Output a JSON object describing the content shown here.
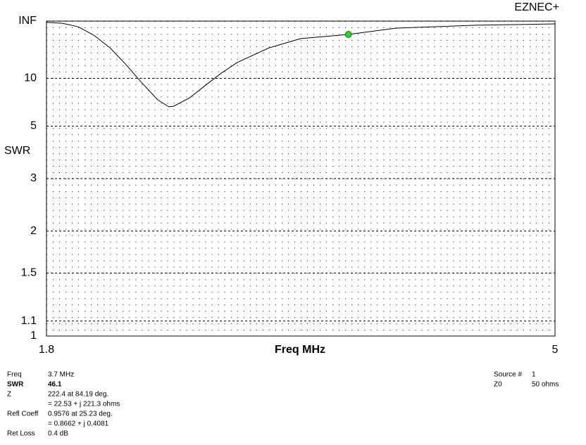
{
  "brand": "EZNEC+",
  "chart_data": {
    "type": "line",
    "y_scale": "reflection",
    "ylabel": "SWR",
    "xlabel": "Freq MHz",
    "x": [
      1.8,
      1.9,
      2.0,
      2.1,
      2.2,
      2.3,
      2.4,
      2.5,
      2.57,
      2.6,
      2.7,
      2.8,
      2.9,
      3.0,
      3.2,
      3.4,
      3.7,
      4.0,
      4.5,
      5.0
    ],
    "series": [
      {
        "color": "#000000",
        "values": [
          500,
          285,
          110,
          43,
          22.5,
          13.5,
          9.2,
          7.0,
          6.35,
          6.4,
          7.2,
          8.8,
          11.1,
          14.2,
          22.5,
          35,
          46.1,
          89,
          150,
          220
        ]
      }
    ],
    "xlim": [
      1.8,
      5
    ],
    "xticks": [
      1.8,
      5
    ],
    "ylim": [
      1,
      null
    ],
    "yticks": [
      1,
      1.1,
      1.5,
      2,
      3,
      5,
      10,
      {
        "value": null,
        "label": "INF"
      }
    ],
    "grid": true,
    "marker": {
      "x": 3.7,
      "y": 46.1,
      "color": "#33cc33"
    }
  },
  "readout": {
    "left": [
      {
        "label": "Freq",
        "value": "3.7 MHz"
      },
      {
        "label": "SWR",
        "value": "46.1",
        "bold": true
      },
      {
        "label": "Z",
        "value": "222.4 at 84.19 deg."
      },
      {
        "label": null,
        "value": "= 22.53 + j 221.3 ohms"
      },
      {
        "label": "Refl Coeff",
        "value": "0.9576 at 25.23 deg."
      },
      {
        "label": null,
        "value": "= 0.8662 + j 0.4081"
      },
      {
        "label": "Ret Loss",
        "value": "0.4 dB"
      }
    ],
    "right": [
      {
        "label": "Source #",
        "value": "1"
      },
      {
        "label": "Z0",
        "value": "50 ohms"
      }
    ]
  }
}
